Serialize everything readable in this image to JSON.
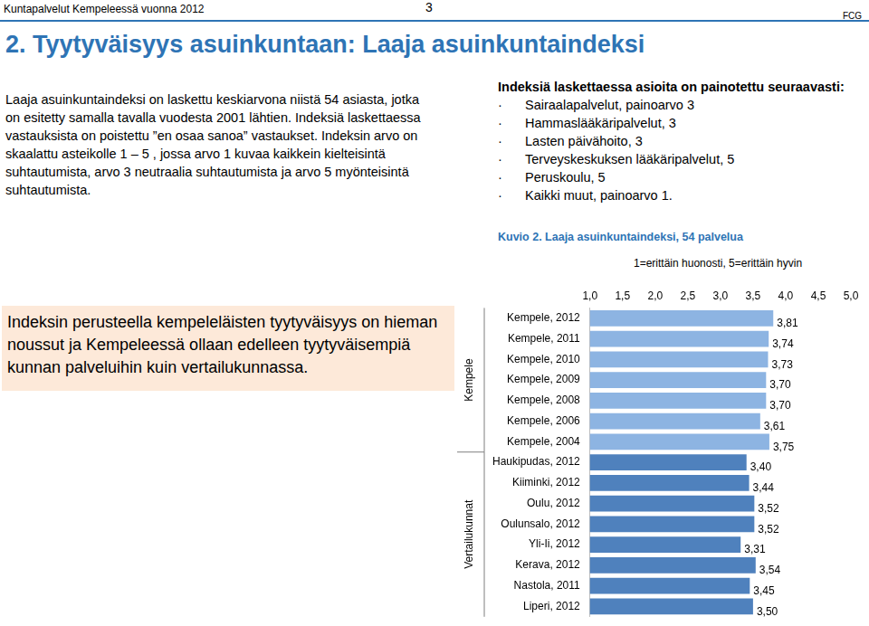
{
  "header": {
    "left": "Kuntapalvelut Kempeleessä vuonna 2012",
    "page": "3",
    "right": "FCG"
  },
  "title": "2. Tyytyväisyys asuinkuntaan: Laaja asuinkuntaindeksi",
  "intro": "Laaja asuinkuntaindeksi on laskettu keskiarvona niistä 54 asiasta, jotka on esitetty samalla tavalla vuodesta 2001 lähtien. Indeksiä laskettaessa vastauksista on poistettu ”en osaa sanoa” vastaukset. Indeksin arvo on skaalattu asteikolle 1 – 5 , jossa arvo 1 kuvaa kaikkein kielteisintä suhtautumista, arvo 3 neutraalia suhtautumista ja arvo 5 myönteisintä suhtautumista.",
  "weights": {
    "heading": "Indeksiä laskettaessa asioita on painotettu seuraavasti:",
    "items": [
      "Sairaalapalvelut, painoarvo 3",
      "Hammaslääkäripalvelut, 3",
      "Lasten päivähoito, 3",
      "Terveyskeskuksen lääkäripalvelut, 5",
      "Peruskoulu, 5",
      "Kaikki muut, painoarvo 1."
    ]
  },
  "highlight": "Indeksin perusteella kempeleläisten tyytyväisyys on hieman noussut ja Kempeleessä ollaan edelleen tyytyväisempiä kunnan palveluihin kuin vertailukunnassa.",
  "chart_data": {
    "type": "bar",
    "orientation": "horizontal",
    "title": "Kuvio 2. Laaja asuinkuntaindeksi, 54 palvelua",
    "subtitle": "1=erittäin huonosti, 5=erittäin hyvin",
    "categories": [
      "Kempele, 2012",
      "Kempele, 2011",
      "Kempele, 2010",
      "Kempele, 2009",
      "Kempele, 2008",
      "Kempele, 2006",
      "Kempele, 2004",
      "Haukipudas, 2012",
      "Kiiminki, 2012",
      "Oulu, 2012",
      "Oulunsalo, 2012",
      "Yli-Ii, 2012",
      "Kerava, 2012",
      "Nastola, 2011",
      "Liperi, 2012"
    ],
    "values": [
      3.81,
      3.74,
      3.73,
      3.7,
      3.7,
      3.61,
      3.75,
      3.4,
      3.44,
      3.52,
      3.52,
      3.31,
      3.54,
      3.45,
      3.5
    ],
    "value_labels": [
      "3,81",
      "3,74",
      "3,73",
      "3,70",
      "3,70",
      "3,61",
      "3,75",
      "3,40",
      "3,44",
      "3,52",
      "3,52",
      "3,31",
      "3,54",
      "3,45",
      "3,50"
    ],
    "colors": [
      "#8db4e2",
      "#8db4e2",
      "#8db4e2",
      "#8db4e2",
      "#8db4e2",
      "#8db4e2",
      "#8db4e2",
      "#4f81bd",
      "#4f81bd",
      "#4f81bd",
      "#4f81bd",
      "#4f81bd",
      "#4f81bd",
      "#4f81bd",
      "#4f81bd"
    ],
    "groups": [
      {
        "label": "Kempele",
        "size": 7
      },
      {
        "label": "Vertailukunnat",
        "size": 8
      }
    ],
    "xlim": [
      1,
      5
    ],
    "xticks": [
      {
        "value": 1,
        "label": "1,0"
      },
      {
        "value": 1.5,
        "label": "1,5"
      },
      {
        "value": 2,
        "label": "2,0"
      },
      {
        "value": 2.5,
        "label": "2,5"
      },
      {
        "value": 3,
        "label": "3,0"
      },
      {
        "value": 3.5,
        "label": "3,5"
      },
      {
        "value": 4,
        "label": "4,0"
      },
      {
        "value": 4.5,
        "label": "4,5"
      },
      {
        "value": 5,
        "label": "5,0"
      }
    ],
    "grid": false,
    "data_labels": true
  }
}
